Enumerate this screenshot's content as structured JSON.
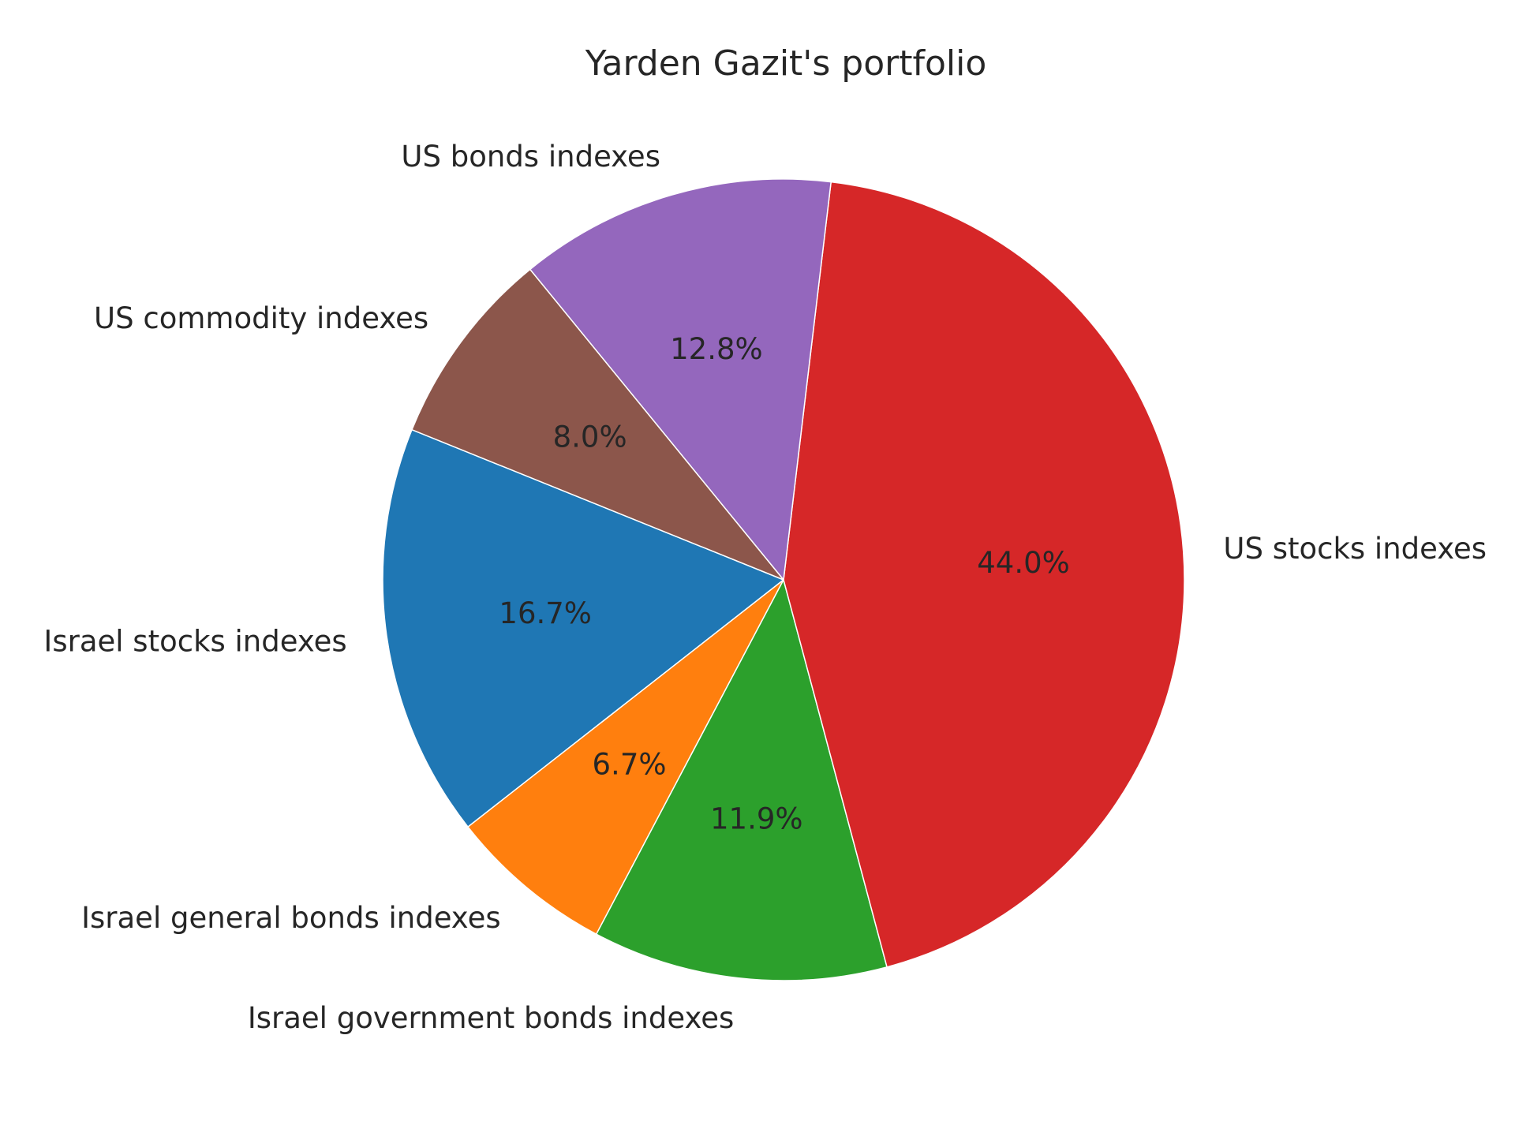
{
  "chart_data": {
    "type": "pie",
    "title": "Yarden Gazit's portfolio",
    "start_angle_deg": 158,
    "direction": "counterclockwise",
    "slices": [
      {
        "label": "Israel stocks indexes",
        "value": 16.7,
        "pct_label": "16.7%",
        "color": "#1f77b4"
      },
      {
        "label": "Israel general bonds indexes",
        "value": 6.7,
        "pct_label": "6.7%",
        "color": "#ff7f0e"
      },
      {
        "label": "Israel government bonds indexes",
        "value": 11.9,
        "pct_label": "11.9%",
        "color": "#2ca02c"
      },
      {
        "label": "US stocks indexes",
        "value": 44.0,
        "pct_label": "44.0%",
        "color": "#d62728"
      },
      {
        "label": "US bonds indexes",
        "value": 12.8,
        "pct_label": "12.8%",
        "color": "#9467bd"
      },
      {
        "label": "US commodity indexes",
        "value": 8.0,
        "pct_label": "8.0%",
        "color": "#8c564b"
      }
    ]
  }
}
